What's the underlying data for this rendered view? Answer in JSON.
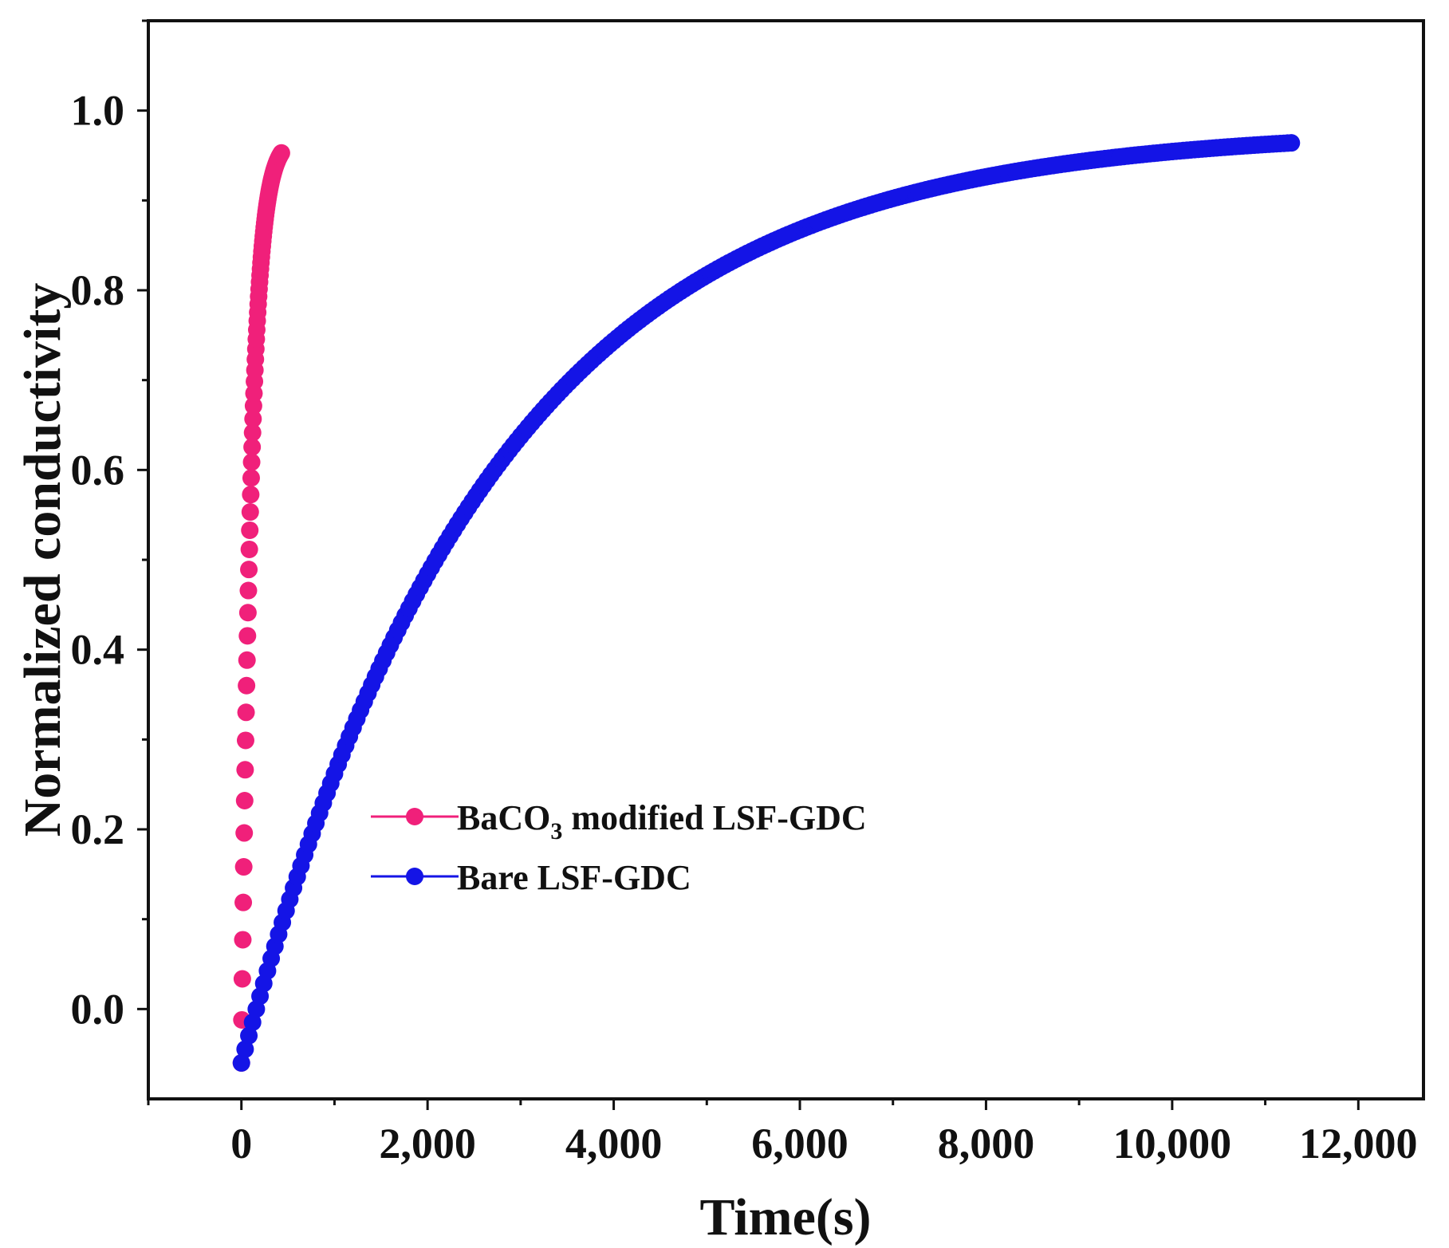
{
  "colors": {
    "modified": "#f0207a",
    "bare": "#1414e6",
    "axis": "#111111"
  },
  "chart_data": {
    "type": "scatter",
    "title": "",
    "xlabel": "Time(s)",
    "ylabel": "Normalized conductivity",
    "xlim": [
      -1000,
      12700
    ],
    "ylim": [
      -0.1,
      1.1
    ],
    "xticks": [
      0,
      2000,
      4000,
      6000,
      8000,
      10000,
      12000
    ],
    "xtick_labels": [
      "0",
      "2,000",
      "4,000",
      "6,000",
      "8,000",
      "10,000",
      "12,000"
    ],
    "yticks": [
      0.0,
      0.2,
      0.4,
      0.6,
      0.8,
      1.0
    ],
    "ytick_labels": [
      "0.0",
      "0.2",
      "0.4",
      "0.6",
      "0.8",
      "1.0"
    ],
    "legend_position": "center-left",
    "series": [
      {
        "name": "BaCO3 modified LSF-GDC",
        "label_main": "BaCO",
        "label_sub": "3",
        "label_rest": " modified LSF-GDC",
        "color_key": "modified",
        "model": {
          "x_start": 0,
          "x_end": 430,
          "step": 5,
          "y0": -0.06,
          "y_inf": 0.97,
          "tau": 105
        }
      },
      {
        "name": "Bare LSF-GDC",
        "label_main": "Bare LSF-GDC",
        "color_key": "bare",
        "model": {
          "x_start": 0,
          "x_end": 11300,
          "step": 40,
          "y0": -0.06,
          "y_inf": 0.98,
          "tau": 2700
        }
      }
    ]
  }
}
